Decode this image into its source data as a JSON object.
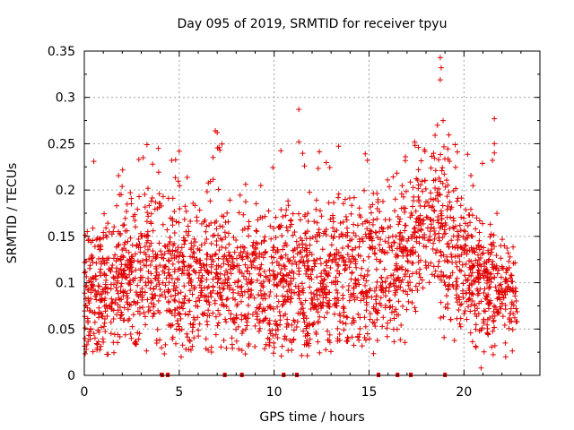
{
  "chart_data": {
    "type": "scatter",
    "title": "Day 095 of 2019, SRMTID for receiver tpyu",
    "xlabel": "GPS time / hours",
    "ylabel": "SRMTID / TECUs",
    "xlim": [
      0,
      24
    ],
    "ylim": [
      0,
      0.35
    ],
    "x_ticks": [
      0,
      5,
      10,
      15,
      20
    ],
    "x_tick_labels": [
      "0",
      "5",
      "10",
      "15",
      "20"
    ],
    "y_ticks": [
      0,
      0.05,
      0.1,
      0.15,
      0.2,
      0.25,
      0.3,
      0.35
    ],
    "y_tick_labels": [
      "0",
      "0.05",
      "0.1",
      "0.15",
      "0.2",
      "0.25",
      "0.3",
      "0.35"
    ],
    "grid": true,
    "marker_color": "#e00000",
    "marker": "plus",
    "point_count_estimate": 2600,
    "density_profile": {
      "hours": [
        0,
        1,
        2,
        3,
        4,
        5,
        6,
        7,
        8,
        9,
        10,
        11,
        12,
        13,
        14,
        15,
        16,
        17,
        18,
        19,
        20,
        21,
        22,
        22.8
      ],
      "median": [
        0.08,
        0.1,
        0.1,
        0.11,
        0.12,
        0.11,
        0.1,
        0.11,
        0.1,
        0.1,
        0.09,
        0.1,
        0.1,
        0.11,
        0.11,
        0.11,
        0.11,
        0.14,
        0.17,
        0.15,
        0.12,
        0.1,
        0.09,
        0.09
      ],
      "spread": [
        0.035,
        0.035,
        0.04,
        0.045,
        0.045,
        0.045,
        0.04,
        0.045,
        0.04,
        0.04,
        0.04,
        0.045,
        0.045,
        0.045,
        0.045,
        0.045,
        0.04,
        0.04,
        0.04,
        0.045,
        0.04,
        0.035,
        0.03,
        0.025
      ]
    },
    "outliers": [
      {
        "x": 0.5,
        "y": 0.231
      },
      {
        "x": 3.1,
        "y": 0.235
      },
      {
        "x": 3.3,
        "y": 0.249
      },
      {
        "x": 3.9,
        "y": 0.245
      },
      {
        "x": 4.6,
        "y": 0.232
      },
      {
        "x": 5.0,
        "y": 0.242
      },
      {
        "x": 6.9,
        "y": 0.264
      },
      {
        "x": 7.0,
        "y": 0.262
      },
      {
        "x": 7.1,
        "y": 0.246
      },
      {
        "x": 11.3,
        "y": 0.287
      },
      {
        "x": 11.3,
        "y": 0.252
      },
      {
        "x": 11.6,
        "y": 0.226
      },
      {
        "x": 14.8,
        "y": 0.239
      },
      {
        "x": 17.4,
        "y": 0.252
      },
      {
        "x": 17.6,
        "y": 0.246
      },
      {
        "x": 18.6,
        "y": 0.27
      },
      {
        "x": 18.75,
        "y": 0.343
      },
      {
        "x": 18.8,
        "y": 0.332
      },
      {
        "x": 18.75,
        "y": 0.319
      },
      {
        "x": 18.9,
        "y": 0.275
      },
      {
        "x": 21.6,
        "y": 0.277
      },
      {
        "x": 21.6,
        "y": 0.25
      },
      {
        "x": 21.6,
        "y": 0.24
      },
      {
        "x": 21.5,
        "y": 0.232
      },
      {
        "x": 20.9,
        "y": 0.008
      },
      {
        "x": 5.1,
        "y": 0.02
      },
      {
        "x": 0.1,
        "y": 0.028
      }
    ],
    "zero_markers_hours": [
      4.1,
      4.4,
      7.4,
      8.3,
      10.5,
      11.2,
      15.5,
      16.5,
      17.2,
      19.0
    ]
  }
}
